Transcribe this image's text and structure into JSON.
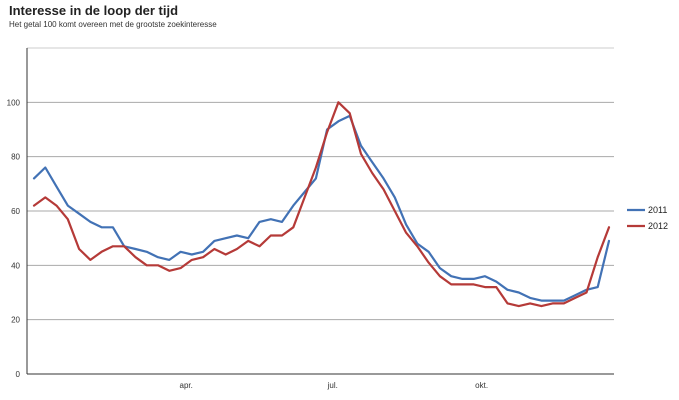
{
  "header": {
    "title": "Interesse in de loop der tijd",
    "subtitle": "Het getal 100 komt overeen met de grootste zoekinteresse"
  },
  "chart_data": {
    "type": "line",
    "title": "Interesse in de loop der tijd",
    "subtitle": "Het getal 100 komt overeen met de grootste zoekinteresse",
    "xlabel": "",
    "ylabel": "",
    "ylim": [
      0,
      120
    ],
    "yticks": [
      0,
      20,
      40,
      60,
      80,
      100
    ],
    "grid": true,
    "legend": "right",
    "x_tick_labels": [
      {
        "label": "apr.",
        "week": 13.5
      },
      {
        "label": "jul.",
        "week": 26.5
      },
      {
        "label": "okt.",
        "week": 39.7
      }
    ],
    "series": [
      {
        "name": "2011",
        "color": "#4272b5",
        "values": [
          72,
          76,
          69,
          62,
          59,
          56,
          54,
          54,
          47,
          46,
          45,
          43,
          42,
          45,
          44,
          45,
          49,
          50,
          51,
          50,
          56,
          57,
          56,
          62,
          67,
          72,
          90,
          93,
          95,
          84,
          78,
          72,
          65,
          55,
          48,
          45,
          39,
          36,
          35,
          35,
          36,
          34,
          31,
          30,
          28,
          27,
          27,
          27,
          29,
          31,
          32,
          49
        ]
      },
      {
        "name": "2012",
        "color": "#b53a38",
        "values": [
          62,
          65,
          62,
          57,
          46,
          42,
          45,
          47,
          47,
          43,
          40,
          40,
          38,
          39,
          42,
          43,
          46,
          44,
          46,
          49,
          47,
          51,
          51,
          54,
          65,
          76,
          89,
          100,
          96,
          81,
          74,
          68,
          60,
          52,
          47,
          41,
          36,
          33,
          33,
          33,
          32,
          32,
          26,
          25,
          26,
          25,
          26,
          26,
          28,
          30,
          43,
          54
        ]
      }
    ]
  }
}
